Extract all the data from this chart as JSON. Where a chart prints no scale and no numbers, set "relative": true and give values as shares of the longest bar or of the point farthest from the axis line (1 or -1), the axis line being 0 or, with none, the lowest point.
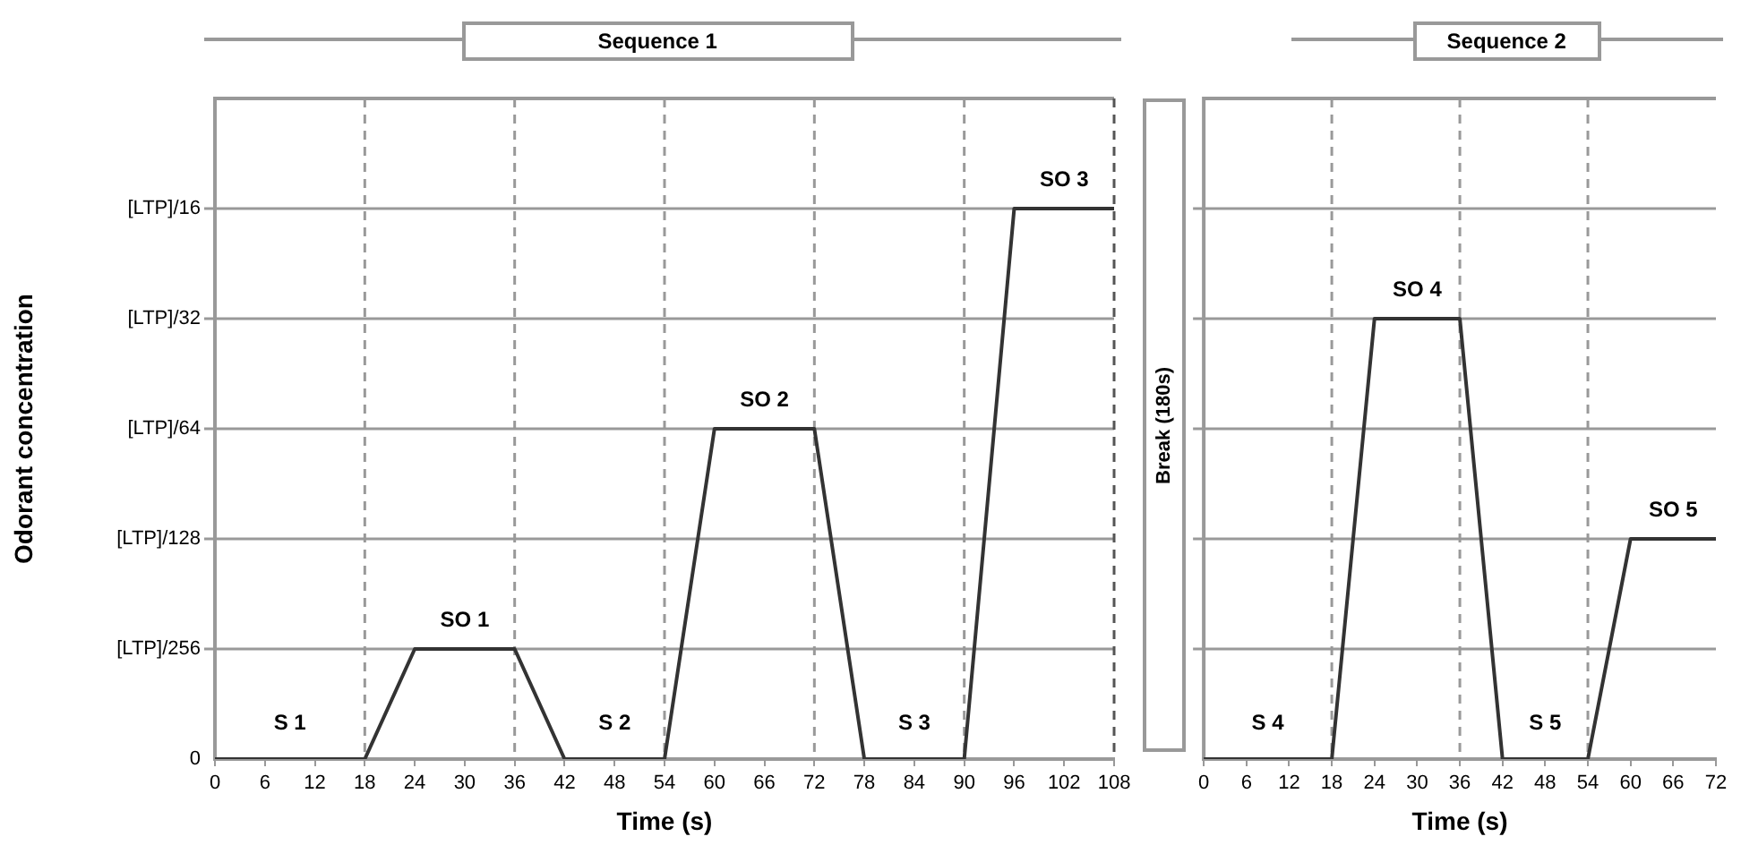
{
  "chart_data": [
    {
      "type": "line",
      "xlabel": "Time (s)",
      "ylabel": "Odorant concentration",
      "relative": true,
      "x": [
        0,
        18,
        24,
        36,
        42,
        54,
        60,
        72,
        78,
        90,
        96,
        108
      ],
      "series": [
        {
          "color": "#333333",
          "values": [
            0,
            0,
            0.2,
            0.2,
            0,
            0,
            0.6,
            0.6,
            0,
            0,
            1,
            1
          ]
        }
      ],
      "xlim": [
        0,
        108
      ],
      "xticks": [
        0,
        6,
        12,
        18,
        24,
        30,
        36,
        42,
        48,
        54,
        60,
        66,
        72,
        78,
        84,
        90,
        96,
        102,
        108
      ],
      "grid": "y",
      "marker": "none",
      "line_style": "solid",
      "legend": false,
      "ref_lines": [
        {
          "axis": "x",
          "value": 18,
          "color": "#999999",
          "line_style": "dashed"
        },
        {
          "axis": "x",
          "value": 36,
          "color": "#999999",
          "line_style": "dashed"
        },
        {
          "axis": "x",
          "value": 54,
          "color": "#999999",
          "line_style": "dashed"
        },
        {
          "axis": "x",
          "value": 72,
          "color": "#999999",
          "line_style": "dashed"
        },
        {
          "axis": "x",
          "value": 90,
          "color": "#999999",
          "line_style": "dashed"
        },
        {
          "axis": "x",
          "value": 108,
          "color": "#555555",
          "line_style": "dashed"
        }
      ],
      "annotations": [
        "Sequence 1",
        "Break (180s)",
        "0",
        "[LTP]/256",
        "[LTP]/128",
        "[LTP]/64",
        "[LTP]/32",
        "[LTP]/16",
        {
          "text": "S 1",
          "x": 9,
          "y": 0
        },
        {
          "text": "SO 1",
          "x": 30,
          "y": 0.2
        },
        {
          "text": "S 2",
          "x": 48,
          "y": 0
        },
        {
          "text": "SO 2",
          "x": 66,
          "y": 0.6
        },
        {
          "text": "S 3",
          "x": 84,
          "y": 0
        },
        {
          "text": "SO 3",
          "x": 102,
          "y": 1
        }
      ]
    },
    {
      "type": "line",
      "xlabel": "Time (s)",
      "relative": true,
      "x": [
        0,
        18,
        24,
        36,
        42,
        54,
        60,
        72
      ],
      "series": [
        {
          "color": "#333333",
          "values": [
            0,
            0,
            1,
            1,
            0,
            0,
            0.5,
            0.5
          ]
        }
      ],
      "xlim": [
        0,
        72
      ],
      "xticks": [
        0,
        6,
        12,
        18,
        24,
        30,
        36,
        42,
        48,
        54,
        60,
        66,
        72
      ],
      "grid": "y",
      "marker": "none",
      "line_style": "solid",
      "legend": false,
      "ref_lines": [
        {
          "axis": "x",
          "value": 18,
          "color": "#999999",
          "line_style": "dashed"
        },
        {
          "axis": "x",
          "value": 36,
          "color": "#999999",
          "line_style": "dashed"
        },
        {
          "axis": "x",
          "value": 54,
          "color": "#999999",
          "line_style": "dashed"
        }
      ],
      "annotations": [
        "Sequence 2",
        {
          "text": "S 4",
          "x": 9,
          "y": 0
        },
        {
          "text": "SO 4",
          "x": 30,
          "y": 1
        },
        {
          "text": "S 5",
          "x": 48,
          "y": 0
        },
        {
          "text": "SO 5",
          "x": 66,
          "y": 0.5
        }
      ]
    }
  ]
}
